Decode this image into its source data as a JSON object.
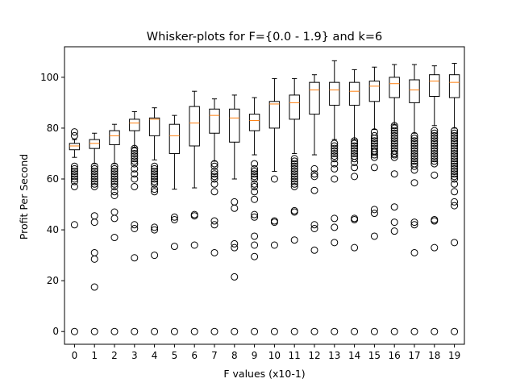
{
  "chart_data": {
    "type": "box",
    "title": "Whisker-plots for F={0.0 - 1.9} and k=6",
    "xlabel": "F values (x10-1)",
    "ylabel": "Profit Per Second",
    "ylim": [
      -5,
      112
    ],
    "yticks": [
      0,
      20,
      40,
      60,
      80,
      100
    ],
    "grid": false,
    "categories": [
      "0",
      "1",
      "2",
      "3",
      "4",
      "5",
      "6",
      "7",
      "8",
      "9",
      "10",
      "11",
      "12",
      "13",
      "14",
      "15",
      "16",
      "17",
      "18",
      "19"
    ],
    "boxes": [
      {
        "category": "0",
        "q1": 71.5,
        "median": 73,
        "q3": 74,
        "whisker_low": 68.5,
        "whisker_high": 75.5,
        "outliers": [
          0,
          42,
          57,
          59,
          60,
          61,
          62,
          63,
          64,
          65,
          77,
          78.5
        ]
      },
      {
        "category": "1",
        "q1": 72,
        "median": 74,
        "q3": 75.5,
        "whisker_low": 66,
        "whisker_high": 78,
        "outliers": [
          0,
          17.5,
          28.5,
          31,
          43,
          45.5,
          57,
          58,
          59,
          60,
          61,
          62,
          63,
          64,
          65
        ]
      },
      {
        "category": "2",
        "q1": 73.5,
        "median": 77,
        "q3": 79,
        "whisker_low": 66,
        "whisker_high": 81.5,
        "outliers": [
          0,
          37,
          44.5,
          47,
          53.5,
          55,
          57,
          58,
          59,
          60,
          61,
          62,
          63,
          64,
          65
        ]
      },
      {
        "category": "3",
        "q1": 79,
        "median": 82,
        "q3": 83.5,
        "whisker_low": 72.5,
        "whisker_high": 86.5,
        "outliers": [
          0,
          29,
          40.5,
          42,
          57,
          60,
          62,
          64,
          66,
          67,
          68,
          69,
          70,
          71,
          72
        ]
      },
      {
        "category": "4",
        "q1": 77,
        "median": 83.5,
        "q3": 84,
        "whisker_low": 67.5,
        "whisker_high": 88,
        "outliers": [
          0,
          30,
          40,
          41,
          55,
          56,
          58,
          59,
          60,
          61,
          62,
          63,
          64,
          65
        ]
      },
      {
        "category": "5",
        "q1": 70,
        "median": 77,
        "q3": 81.5,
        "whisker_low": 56,
        "whisker_high": 85,
        "outliers": [
          0,
          33.5,
          44,
          45
        ]
      },
      {
        "category": "6",
        "q1": 73,
        "median": 82,
        "q3": 88.5,
        "whisker_low": 56.5,
        "whisker_high": 94.5,
        "outliers": [
          0,
          34,
          45.5,
          46
        ]
      },
      {
        "category": "7",
        "q1": 78,
        "median": 85,
        "q3": 87.5,
        "whisker_low": 67,
        "whisker_high": 91.5,
        "outliers": [
          0,
          31,
          42,
          43.5,
          55,
          58,
          60,
          61,
          62,
          63,
          65,
          66
        ]
      },
      {
        "category": "8",
        "q1": 74.5,
        "median": 84,
        "q3": 87.5,
        "whisker_low": 60,
        "whisker_high": 93,
        "outliers": [
          0,
          21.5,
          33,
          34.5,
          48.5,
          51
        ]
      },
      {
        "category": "9",
        "q1": 79,
        "median": 83,
        "q3": 85.5,
        "whisker_low": 69.5,
        "whisker_high": 92,
        "outliers": [
          0,
          29.5,
          34,
          37.5,
          45,
          46,
          52,
          55,
          57,
          58,
          60,
          61,
          62,
          63,
          64,
          66
        ]
      },
      {
        "category": "10",
        "q1": 80,
        "median": 89.5,
        "q3": 90.5,
        "whisker_low": 63,
        "whisker_high": 99.5,
        "outliers": [
          0,
          34,
          43,
          43.5,
          60
        ]
      },
      {
        "category": "11",
        "q1": 83.5,
        "median": 90,
        "q3": 93,
        "whisker_low": 70,
        "whisker_high": 99.5,
        "outliers": [
          0,
          36,
          47,
          47.5,
          57,
          58,
          59,
          60,
          61,
          62,
          63,
          64,
          65,
          66,
          67,
          68
        ]
      },
      {
        "category": "12",
        "q1": 85.5,
        "median": 95,
        "q3": 98,
        "whisker_low": 69.5,
        "whisker_high": 101,
        "outliers": [
          0,
          32,
          40.5,
          42,
          55.5,
          61,
          62,
          64
        ]
      },
      {
        "category": "13",
        "q1": 89,
        "median": 95,
        "q3": 98,
        "whisker_low": 75.5,
        "whisker_high": 106.5,
        "outliers": [
          0,
          35,
          41,
          44.5,
          60,
          64,
          66,
          68,
          69,
          70,
          71,
          72,
          73,
          74
        ]
      },
      {
        "category": "14",
        "q1": 89,
        "median": 94.5,
        "q3": 98,
        "whisker_low": 75.5,
        "whisker_high": 103,
        "outliers": [
          0,
          33,
          44,
          44.5,
          61,
          64.5,
          66.5,
          68,
          69,
          70,
          71,
          72,
          73,
          74,
          75
        ]
      },
      {
        "category": "15",
        "q1": 90.5,
        "median": 96.5,
        "q3": 98.5,
        "whisker_low": 79.5,
        "whisker_high": 104,
        "outliers": [
          0,
          37.5,
          46.5,
          48,
          64.5,
          68.5,
          69.5,
          70.5,
          71,
          72,
          73,
          74,
          75,
          76,
          77,
          78.5
        ]
      },
      {
        "category": "16",
        "q1": 92,
        "median": 97.5,
        "q3": 100,
        "whisker_low": 81.5,
        "whisker_high": 105,
        "outliers": [
          0,
          39.5,
          43,
          49,
          62,
          68.5,
          69.5,
          70,
          71,
          72,
          73,
          74,
          75,
          76,
          77,
          78,
          79,
          80,
          81
        ]
      },
      {
        "category": "17",
        "q1": 90,
        "median": 95,
        "q3": 99,
        "whisker_low": 78,
        "whisker_high": 105,
        "outliers": [
          0,
          31,
          42,
          43,
          58.5,
          63.5,
          65,
          66,
          67,
          68,
          69,
          70,
          71,
          72,
          73,
          74,
          75,
          76,
          77
        ]
      },
      {
        "category": "18",
        "q1": 92.5,
        "median": 98.5,
        "q3": 101,
        "whisker_low": 81,
        "whisker_high": 104.5,
        "outliers": [
          0,
          33,
          43.5,
          44,
          61.5,
          66,
          67,
          68,
          69,
          70,
          71,
          72,
          73,
          74,
          75,
          76,
          77,
          78,
          79
        ]
      },
      {
        "category": "19",
        "q1": 92,
        "median": 98,
        "q3": 101,
        "whisker_low": 80,
        "whisker_high": 105.5,
        "outliers": [
          0,
          35,
          49.5,
          51,
          55,
          58,
          60,
          61,
          62,
          63,
          64,
          65,
          66,
          67,
          68,
          69,
          70,
          71,
          72,
          73,
          74,
          75,
          76,
          77,
          78,
          79
        ]
      }
    ],
    "colors": {
      "box": "#000000",
      "median": "#ff7f0e",
      "flier": "#000000",
      "background": "#ffffff"
    }
  }
}
